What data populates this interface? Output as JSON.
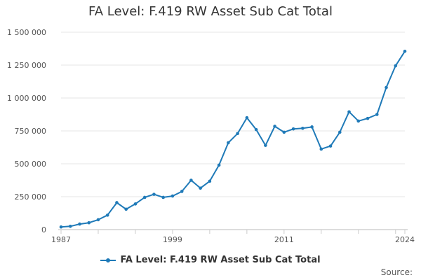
{
  "chart_data": {
    "type": "line",
    "title": "FA Level: F.419 RW Asset Sub Cat Total",
    "xlabel": "",
    "ylabel": "",
    "xlim": [
      1987,
      2024
    ],
    "ylim": [
      0,
      1500000
    ],
    "x_tick_labels": [
      "1987",
      "1999",
      "2011",
      "2024"
    ],
    "y_tick_labels": [
      "0",
      "250 000",
      "500 000",
      "750 000",
      "1 000 000",
      "1 250 000",
      "1 500 000"
    ],
    "series": [
      {
        "name": "FA Level: F.419 RW Asset Sub Cat Total",
        "color": "#1f7ab8",
        "x": [
          1987,
          1988,
          1989,
          1990,
          1991,
          1992,
          1993,
          1994,
          1995,
          1996,
          1997,
          1998,
          1999,
          2000,
          2001,
          2002,
          2003,
          2004,
          2005,
          2006,
          2007,
          2008,
          2009,
          2010,
          2011,
          2012,
          2013,
          2014,
          2015,
          2016,
          2017,
          2018,
          2019,
          2020,
          2021,
          2022,
          2023,
          2024
        ],
        "values": [
          20000,
          25000,
          42000,
          52000,
          75000,
          110000,
          205000,
          155000,
          195000,
          245000,
          268000,
          245000,
          255000,
          290000,
          375000,
          315000,
          368000,
          490000,
          660000,
          730000,
          850000,
          760000,
          640000,
          785000,
          740000,
          765000,
          770000,
          780000,
          612000,
          635000,
          740000,
          895000,
          825000,
          845000,
          875000,
          1080000,
          1245000,
          1355000
        ]
      }
    ]
  },
  "legend": {
    "label": "FA Level: F.419 RW Asset Sub Cat Total"
  },
  "source": {
    "label": "Source:"
  }
}
